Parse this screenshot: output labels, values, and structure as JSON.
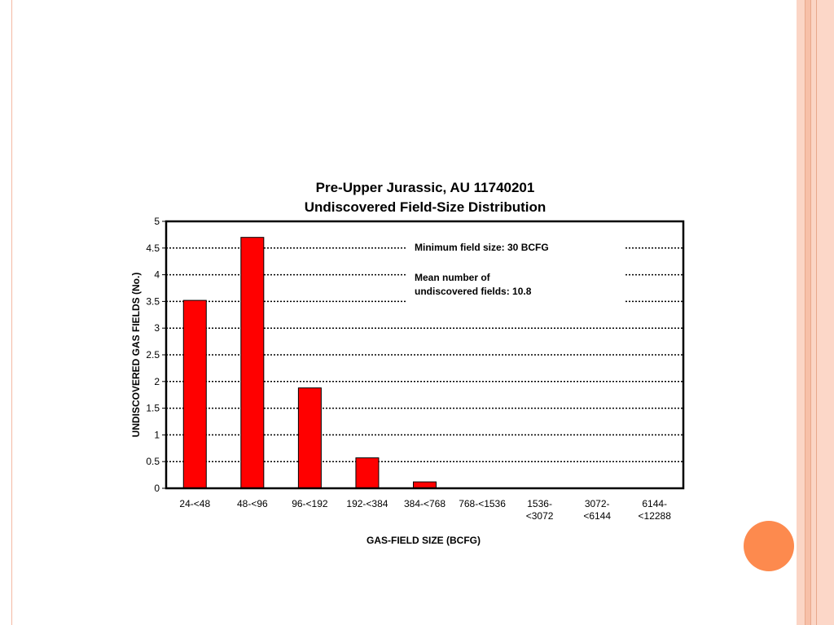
{
  "theme": {
    "bar_color": "#ff0000",
    "accent_circle_color": "#fd8a4e",
    "frame_color": "#fbd5c5"
  },
  "chart_data": {
    "type": "bar",
    "title": "Pre-Upper Jurassic, AU 11740201",
    "subtitle": "Undiscovered Field-Size Distribution",
    "xlabel": "GAS-FIELD SIZE (BCFG)",
    "ylabel": "UNDISCOVERED GAS FIELDS (No.)",
    "ylim": [
      0,
      5
    ],
    "yticks": [
      "0",
      "0.5",
      "1",
      "1.5",
      "2",
      "2.5",
      "3",
      "3.5",
      "4",
      "4.5",
      "5"
    ],
    "categories": [
      "24-<48",
      "48-<96",
      "96-<192",
      "192-<384",
      "384-<768",
      "768-<1536",
      "1536-\n<3072",
      "3072-\n<6144",
      "6144-\n<12288"
    ],
    "values": [
      3.52,
      4.7,
      1.88,
      0.57,
      0.12,
      0,
      0,
      0,
      0
    ],
    "grid": true,
    "annotations": [
      "Minimum field size: 30 BCFG",
      "Mean number of",
      "undiscovered fields: 10.8"
    ]
  }
}
